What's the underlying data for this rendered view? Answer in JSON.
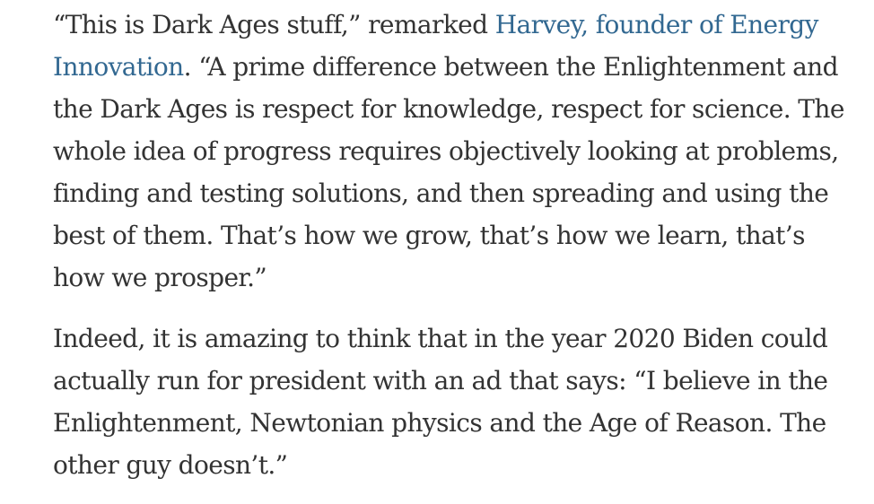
{
  "article": {
    "paragraph_1": {
      "before_link": "“This is Dark Ages stuff,” remarked ",
      "link_text": "Harvey, founder of Energy Innovation",
      "after_link": ". “A prime difference between the Enlightenment and the Dark Ages is respect for knowledge, respect for science. The whole idea of progress requires objectively looking at problems, finding and testing solutions, and then spreading and using the best of them. That’s how we grow, that’s how we learn, that’s how we prosper.”"
    },
    "paragraph_2": {
      "text": "Indeed, it is amazing to think that in the year 2020 Biden could actually run for president with an ad that says: “I believe in the Enlightenment, Newtonian physics and the Age of Reason. The other guy doesn’t.”"
    }
  },
  "colors": {
    "text": "#333333",
    "link": "#326891",
    "background": "#ffffff"
  }
}
